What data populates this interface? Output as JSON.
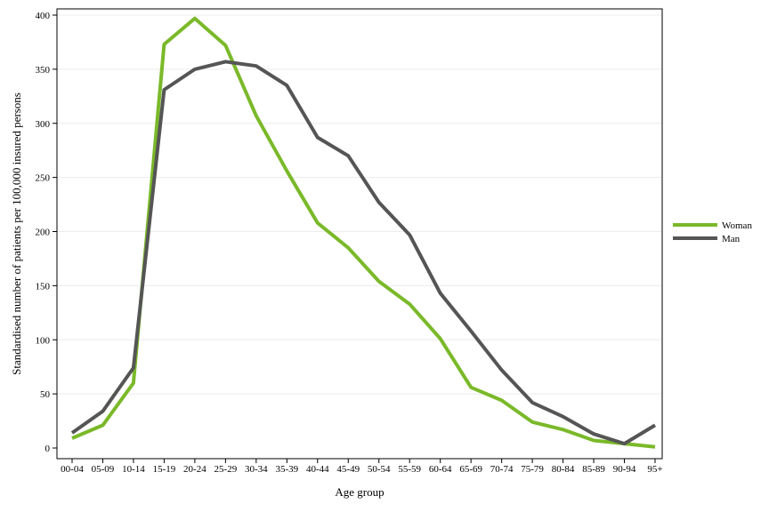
{
  "chart_data": {
    "type": "line",
    "title": "",
    "xlabel": "Age group",
    "ylabel": "Standardised number of patients per 100,000 insured persons",
    "ylim": [
      0,
      400
    ],
    "yticks": [
      0,
      50,
      100,
      150,
      200,
      250,
      300,
      350,
      400
    ],
    "grid": true,
    "legend_position": "right",
    "categories": [
      "00-04",
      "05-09",
      "10-14",
      "15-19",
      "20-24",
      "25-29",
      "30-34",
      "35-39",
      "40-44",
      "45-49",
      "50-54",
      "55-59",
      "60-64",
      "65-69",
      "70-74",
      "75-79",
      "80-84",
      "85-89",
      "90-94",
      "95+"
    ],
    "series": [
      {
        "name": "Woman",
        "color": "#7ab929",
        "values": [
          9,
          21,
          60,
          373,
          397,
          372,
          307,
          256,
          208,
          185,
          154,
          133,
          101,
          56,
          44,
          24,
          17,
          7,
          4,
          1
        ]
      },
      {
        "name": "Man",
        "color": "#555555",
        "values": [
          14,
          34,
          74,
          331,
          350,
          357,
          353,
          335,
          287,
          270,
          227,
          197,
          143,
          108,
          72,
          42,
          29,
          13,
          4,
          21
        ]
      }
    ]
  }
}
